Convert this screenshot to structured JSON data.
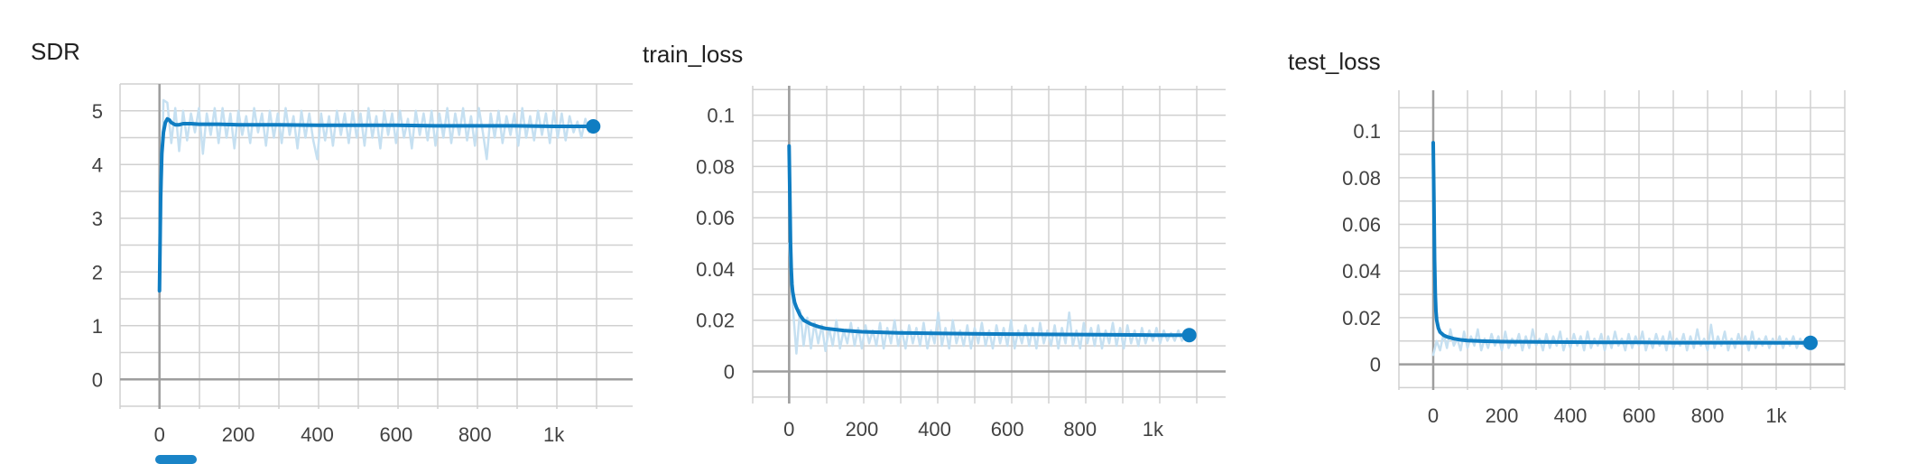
{
  "colors": {
    "smoothed": "#0f7dc2",
    "raw": "#c6e0f1",
    "grid": "#d0d0d0",
    "axis": "#9e9e9e",
    "text": "#424242"
  },
  "chart_data": [
    {
      "type": "line",
      "title": "SDR",
      "xlabel": "",
      "ylabel": "",
      "xlim": [
        -100,
        1200
      ],
      "ylim": [
        -0.55,
        5.5
      ],
      "xticks": [
        0,
        200,
        400,
        600,
        800,
        1000
      ],
      "xtick_labels": [
        "0",
        "200",
        "400",
        "600",
        "800",
        "1k"
      ],
      "yticks": [
        0,
        1,
        2,
        3,
        4,
        5
      ],
      "ytick_labels": [
        "0",
        "1",
        "2",
        "3",
        "4",
        "5"
      ],
      "grid": true,
      "series": [
        {
          "style": "raw",
          "x": [
            0,
            10,
            20,
            30,
            40,
            50,
            60,
            70,
            80,
            90,
            100,
            110,
            120,
            130,
            140,
            150,
            160,
            170,
            180,
            190,
            200,
            210,
            220,
            230,
            240,
            250,
            260,
            270,
            280,
            290,
            300,
            310,
            320,
            330,
            340,
            350,
            360,
            370,
            380,
            390,
            400,
            410,
            420,
            430,
            440,
            450,
            460,
            470,
            480,
            490,
            500,
            510,
            520,
            530,
            540,
            550,
            560,
            570,
            580,
            590,
            600,
            610,
            620,
            630,
            640,
            650,
            660,
            670,
            680,
            690,
            700,
            710,
            720,
            730,
            740,
            750,
            760,
            770,
            780,
            790,
            800,
            810,
            820,
            830,
            840,
            850,
            860,
            870,
            880,
            890,
            900,
            910,
            920,
            930,
            940,
            950,
            960,
            970,
            980,
            990,
            1000,
            1010,
            1020,
            1030,
            1040,
            1050,
            1060,
            1070,
            1080,
            1090,
            1100
          ],
          "y": [
            1.65,
            5.2,
            5.15,
            4.4,
            5.05,
            4.25,
            5.0,
            4.45,
            4.95,
            4.6,
            5.05,
            4.2,
            4.95,
            4.55,
            5.05,
            4.4,
            5.05,
            4.5,
            4.95,
            4.3,
            5.0,
            4.55,
            4.9,
            4.4,
            5.05,
            4.6,
            4.95,
            4.35,
            5.0,
            4.5,
            4.95,
            4.4,
            5.05,
            4.55,
            4.9,
            4.3,
            5.0,
            4.5,
            4.95,
            4.45,
            4.1,
            4.95,
            4.45,
            4.9,
            4.35,
            5.0,
            4.55,
            4.95,
            4.4,
            5.0,
            4.5,
            4.95,
            4.35,
            5.05,
            4.5,
            4.9,
            4.3,
            5.0,
            4.55,
            4.95,
            4.4,
            5.0,
            4.5,
            4.85,
            4.3,
            5.0,
            4.55,
            4.95,
            4.45,
            5.0,
            4.35,
            4.95,
            4.5,
            5.05,
            4.4,
            4.95,
            4.55,
            5.05,
            4.45,
            4.9,
            4.35,
            5.05,
            4.6,
            4.1,
            4.95,
            4.5,
            5.0,
            4.4,
            4.9,
            4.55,
            4.95,
            4.35,
            5.05,
            4.5,
            4.9,
            4.45,
            5.0,
            4.55,
            4.95,
            4.4,
            5.0,
            4.5,
            4.95,
            4.45,
            4.9,
            4.6,
            4.8,
            4.5,
            4.85,
            4.6,
            4.7
          ]
        },
        {
          "style": "smoothed",
          "x": [
            0,
            3,
            6,
            10,
            15,
            20,
            25,
            30,
            40,
            50,
            60,
            80,
            100,
            150,
            200,
            300,
            400,
            500,
            600,
            700,
            800,
            900,
            1000,
            1100
          ],
          "y": [
            1.65,
            3.4,
            4.2,
            4.6,
            4.78,
            4.85,
            4.83,
            4.78,
            4.74,
            4.74,
            4.76,
            4.76,
            4.75,
            4.75,
            4.74,
            4.74,
            4.73,
            4.73,
            4.73,
            4.72,
            4.72,
            4.72,
            4.71,
            4.71
          ]
        }
      ],
      "last_point": {
        "x": 1100,
        "y": 4.71
      }
    },
    {
      "type": "line",
      "title": "train_loss",
      "xlabel": "",
      "ylabel": "",
      "xlim": [
        -100,
        1200
      ],
      "ylim": [
        -0.0125,
        0.1115
      ],
      "xticks": [
        0,
        200,
        400,
        600,
        800,
        1000
      ],
      "xtick_labels": [
        "0",
        "200",
        "400",
        "600",
        "800",
        "1k"
      ],
      "yticks": [
        0,
        0.02,
        0.04,
        0.06,
        0.08,
        0.1
      ],
      "ytick_labels": [
        "0",
        "0.02",
        "0.04",
        "0.06",
        "0.08",
        "0.1"
      ],
      "grid": true,
      "series": [
        {
          "style": "raw",
          "x": [
            0,
            10,
            20,
            30,
            40,
            50,
            60,
            70,
            80,
            90,
            100,
            110,
            120,
            130,
            140,
            150,
            160,
            170,
            180,
            190,
            200,
            210,
            220,
            230,
            240,
            250,
            260,
            270,
            280,
            290,
            300,
            310,
            320,
            330,
            340,
            350,
            360,
            370,
            380,
            390,
            400,
            410,
            420,
            430,
            440,
            450,
            460,
            470,
            480,
            490,
            500,
            510,
            520,
            530,
            540,
            550,
            560,
            570,
            580,
            590,
            600,
            610,
            620,
            630,
            640,
            650,
            660,
            670,
            680,
            690,
            700,
            710,
            720,
            730,
            740,
            750,
            760,
            770,
            780,
            790,
            800,
            810,
            820,
            830,
            840,
            850,
            860,
            870,
            880,
            890,
            900,
            910,
            920,
            930,
            940,
            950,
            960,
            970,
            980,
            990,
            1000,
            1010,
            1020,
            1030,
            1040,
            1050,
            1060,
            1070,
            1080,
            1090,
            1100
          ],
          "y": [
            0.05,
            0.026,
            0.007,
            0.024,
            0.01,
            0.021,
            0.009,
            0.019,
            0.011,
            0.018,
            0.008,
            0.017,
            0.01,
            0.02,
            0.009,
            0.016,
            0.011,
            0.019,
            0.01,
            0.017,
            0.009,
            0.018,
            0.011,
            0.016,
            0.01,
            0.019,
            0.009,
            0.017,
            0.011,
            0.02,
            0.01,
            0.016,
            0.009,
            0.018,
            0.011,
            0.017,
            0.01,
            0.019,
            0.009,
            0.016,
            0.011,
            0.023,
            0.01,
            0.017,
            0.009,
            0.02,
            0.011,
            0.016,
            0.01,
            0.018,
            0.009,
            0.017,
            0.011,
            0.019,
            0.01,
            0.016,
            0.009,
            0.018,
            0.011,
            0.017,
            0.01,
            0.02,
            0.009,
            0.016,
            0.011,
            0.018,
            0.01,
            0.017,
            0.009,
            0.019,
            0.011,
            0.016,
            0.01,
            0.018,
            0.009,
            0.017,
            0.011,
            0.023,
            0.01,
            0.016,
            0.009,
            0.019,
            0.011,
            0.017,
            0.01,
            0.018,
            0.009,
            0.016,
            0.011,
            0.019,
            0.01,
            0.017,
            0.009,
            0.018,
            0.011,
            0.016,
            0.01,
            0.017,
            0.011,
            0.016,
            0.012,
            0.017,
            0.011,
            0.016,
            0.012,
            0.015,
            0.012,
            0.016,
            0.012,
            0.015,
            0.013
          ]
        },
        {
          "style": "smoothed",
          "x": [
            0,
            2,
            4,
            6,
            8,
            10,
            15,
            20,
            30,
            40,
            60,
            80,
            100,
            150,
            200,
            300,
            400,
            500,
            600,
            700,
            800,
            900,
            1000,
            1100
          ],
          "y": [
            0.088,
            0.07,
            0.05,
            0.04,
            0.034,
            0.031,
            0.027,
            0.025,
            0.022,
            0.02,
            0.0185,
            0.0175,
            0.0168,
            0.016,
            0.0155,
            0.0151,
            0.0149,
            0.0147,
            0.0146,
            0.0145,
            0.0144,
            0.0143,
            0.0142,
            0.0142
          ]
        }
      ],
      "last_point": {
        "x": 1100,
        "y": 0.0142
      }
    },
    {
      "type": "line",
      "title": "test_loss",
      "xlabel": "",
      "ylabel": "",
      "xlim": [
        -100,
        1200
      ],
      "ylim": [
        -0.011,
        0.1175
      ],
      "xticks": [
        0,
        200,
        400,
        600,
        800,
        1000
      ],
      "xtick_labels": [
        "0",
        "200",
        "400",
        "600",
        "800",
        "1k"
      ],
      "yticks": [
        0,
        0.02,
        0.04,
        0.06,
        0.08,
        0.1
      ],
      "ytick_labels": [
        "0",
        "0.02",
        "0.04",
        "0.06",
        "0.08",
        "0.1"
      ],
      "grid": true,
      "series": [
        {
          "style": "raw",
          "x": [
            0,
            10,
            20,
            30,
            40,
            50,
            60,
            70,
            80,
            90,
            100,
            110,
            120,
            130,
            140,
            150,
            160,
            170,
            180,
            190,
            200,
            210,
            220,
            230,
            240,
            250,
            260,
            270,
            280,
            290,
            300,
            310,
            320,
            330,
            340,
            350,
            360,
            370,
            380,
            390,
            400,
            410,
            420,
            430,
            440,
            450,
            460,
            470,
            480,
            490,
            500,
            510,
            520,
            530,
            540,
            550,
            560,
            570,
            580,
            590,
            600,
            610,
            620,
            630,
            640,
            650,
            660,
            670,
            680,
            690,
            700,
            710,
            720,
            730,
            740,
            750,
            760,
            770,
            780,
            790,
            800,
            810,
            820,
            830,
            840,
            850,
            860,
            870,
            880,
            890,
            900,
            910,
            920,
            930,
            940,
            950,
            960,
            970,
            980,
            990,
            1000,
            1010,
            1020,
            1030,
            1040,
            1050,
            1060,
            1070,
            1080,
            1090,
            1100
          ],
          "y": [
            0.004,
            0.01,
            0.006,
            0.013,
            0.007,
            0.015,
            0.008,
            0.011,
            0.006,
            0.014,
            0.007,
            0.012,
            0.008,
            0.015,
            0.006,
            0.011,
            0.007,
            0.013,
            0.008,
            0.012,
            0.006,
            0.014,
            0.007,
            0.011,
            0.008,
            0.013,
            0.006,
            0.012,
            0.007,
            0.015,
            0.008,
            0.011,
            0.006,
            0.013,
            0.007,
            0.012,
            0.008,
            0.014,
            0.006,
            0.011,
            0.007,
            0.013,
            0.008,
            0.012,
            0.006,
            0.014,
            0.007,
            0.011,
            0.008,
            0.013,
            0.006,
            0.012,
            0.007,
            0.014,
            0.008,
            0.011,
            0.006,
            0.013,
            0.007,
            0.012,
            0.008,
            0.014,
            0.006,
            0.011,
            0.007,
            0.013,
            0.008,
            0.012,
            0.006,
            0.014,
            0.007,
            0.011,
            0.008,
            0.013,
            0.006,
            0.012,
            0.007,
            0.015,
            0.008,
            0.011,
            0.006,
            0.017,
            0.007,
            0.012,
            0.008,
            0.014,
            0.006,
            0.011,
            0.007,
            0.013,
            0.008,
            0.012,
            0.006,
            0.014,
            0.007,
            0.011,
            0.008,
            0.012,
            0.007,
            0.011,
            0.008,
            0.012,
            0.007,
            0.011,
            0.008,
            0.012,
            0.007,
            0.011,
            0.008,
            0.01,
            0.009
          ]
        },
        {
          "style": "smoothed",
          "x": [
            0,
            2,
            4,
            6,
            8,
            10,
            15,
            20,
            30,
            40,
            60,
            80,
            100,
            150,
            200,
            300,
            400,
            500,
            600,
            700,
            800,
            900,
            1000,
            1100
          ],
          "y": [
            0.095,
            0.07,
            0.045,
            0.03,
            0.023,
            0.019,
            0.0155,
            0.0138,
            0.0125,
            0.0118,
            0.011,
            0.0105,
            0.0102,
            0.0099,
            0.0097,
            0.0096,
            0.0095,
            0.0094,
            0.0094,
            0.0093,
            0.0093,
            0.0093,
            0.0092,
            0.0092
          ]
        }
      ],
      "last_point": {
        "x": 1100,
        "y": 0.0092
      }
    }
  ]
}
